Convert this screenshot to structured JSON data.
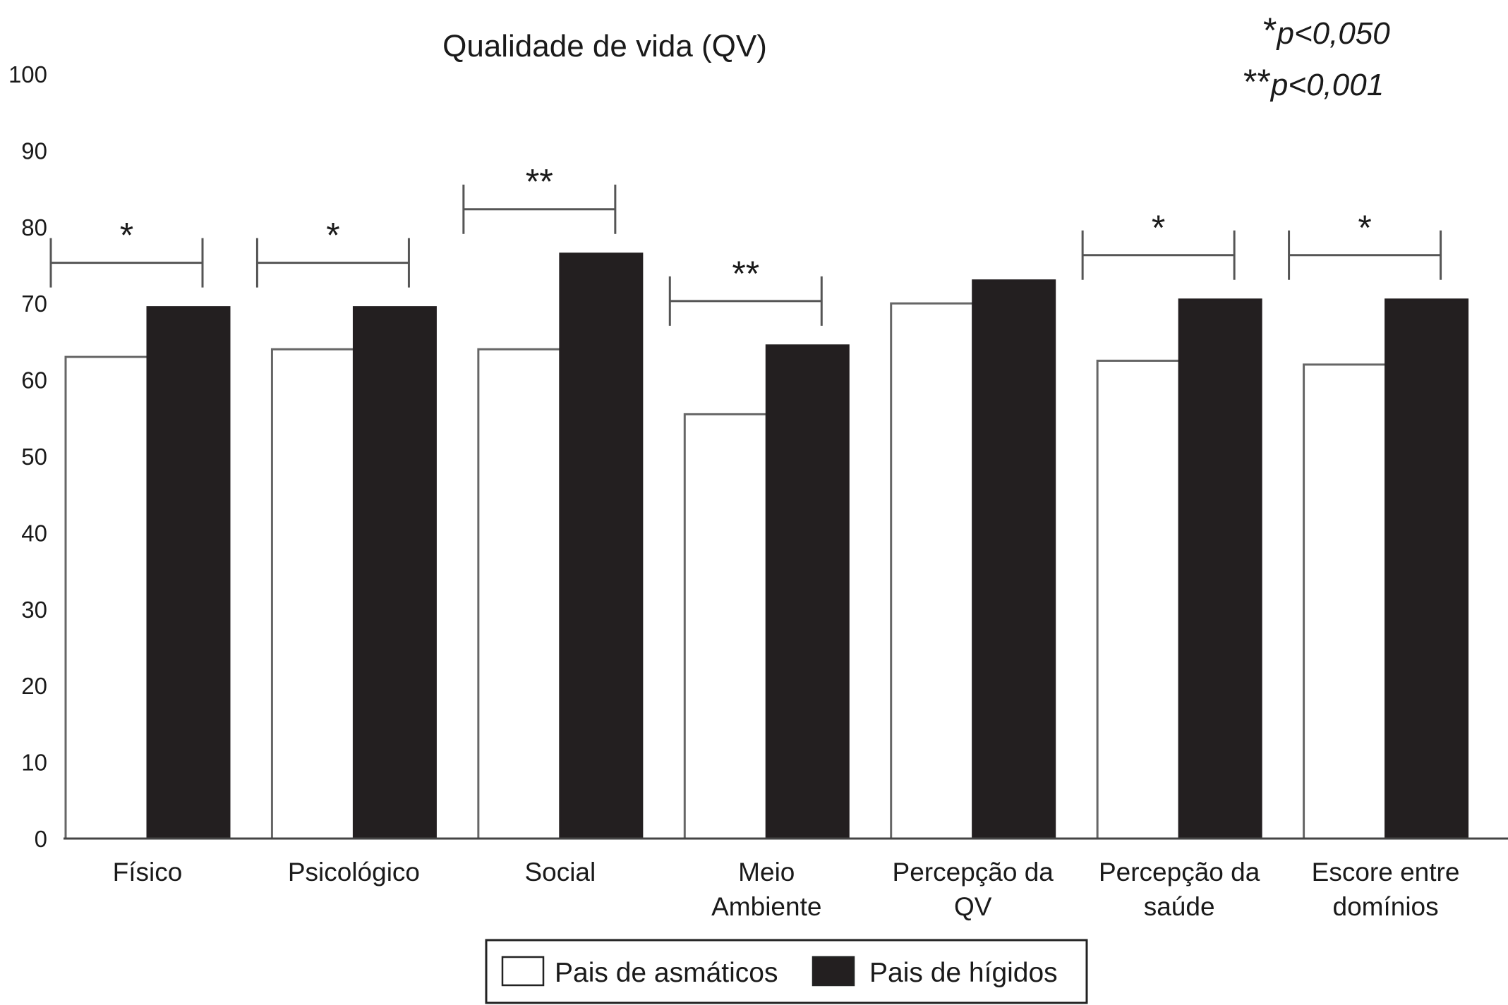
{
  "chart_data": {
    "type": "bar",
    "title": "Qualidade de vida (QV)",
    "xlabel": "",
    "ylabel": "",
    "ylim": [
      0,
      100
    ],
    "yticks": [
      0,
      10,
      20,
      30,
      40,
      50,
      60,
      70,
      80,
      90,
      100
    ],
    "categories": [
      [
        "Físico"
      ],
      [
        "Psicológico"
      ],
      [
        "Social"
      ],
      [
        "Meio",
        "Ambiente"
      ],
      [
        "Percepção da",
        "QV"
      ],
      [
        "Percepção da",
        "saúde"
      ],
      [
        "Escore entre",
        "domínios"
      ]
    ],
    "series": [
      {
        "name": "Pais de asmáticos",
        "color": "#ffffff",
        "values": [
          63,
          64,
          64,
          55.5,
          70,
          62.5,
          62
        ]
      },
      {
        "name": "Pais de hígidos",
        "color": "#231f20",
        "values": [
          69.5,
          69.5,
          76.5,
          64.5,
          73,
          70.5,
          70.5
        ]
      }
    ],
    "significance": [
      "*",
      "*",
      "**",
      "**",
      "",
      "*",
      "*"
    ],
    "notes": [
      {
        "stars": "*",
        "text": "p<0,050"
      },
      {
        "stars": "**",
        "text": "p<0,001"
      }
    ],
    "legend_position": "bottom-center",
    "grid": false
  }
}
